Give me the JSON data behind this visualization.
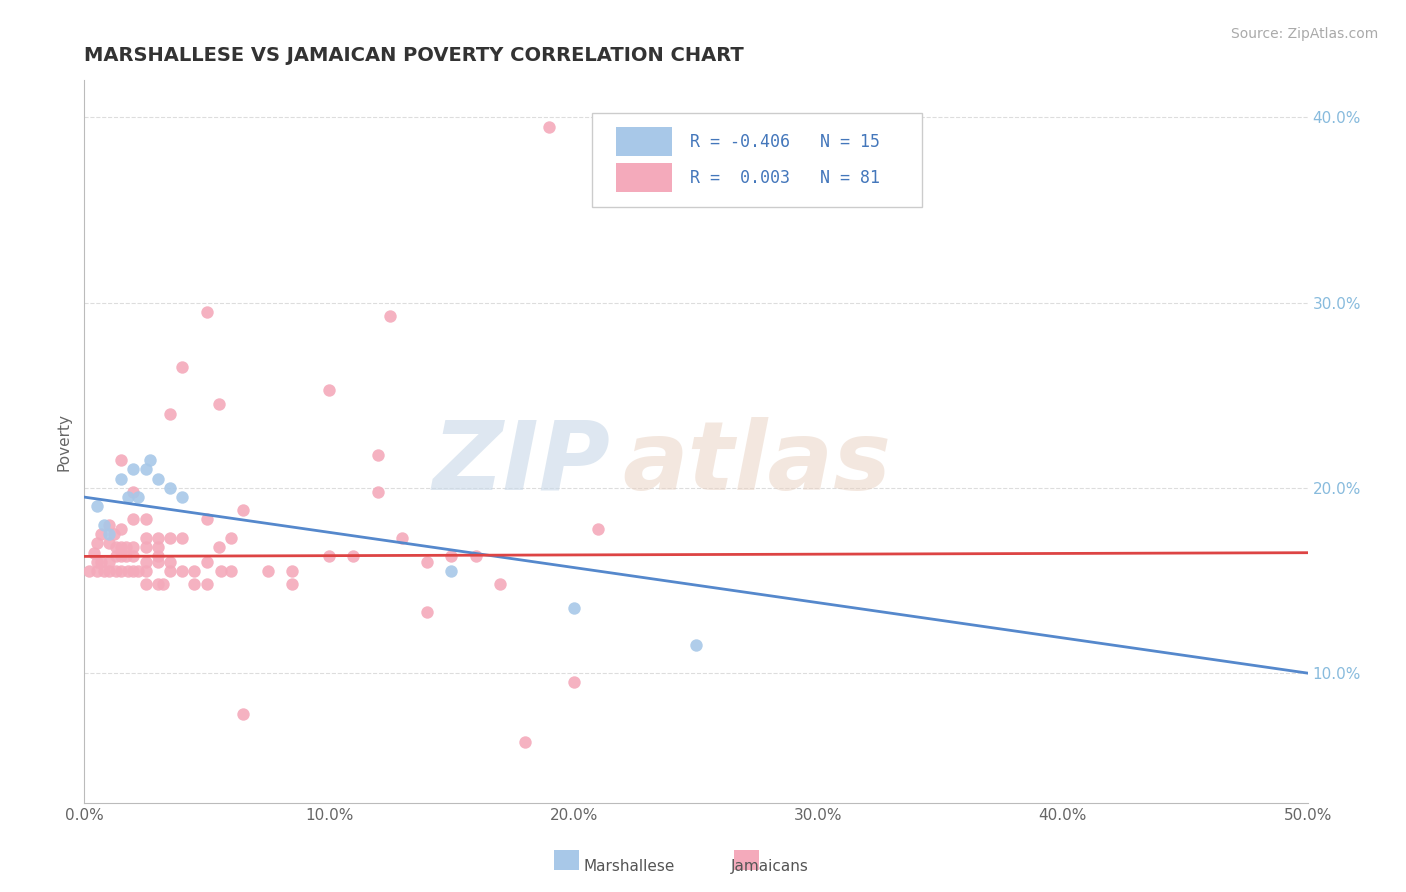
{
  "title": "MARSHALLESE VS JAMAICAN POVERTY CORRELATION CHART",
  "source": "Source: ZipAtlas.com",
  "ylabel": "Poverty",
  "xlim": [
    0.0,
    0.5
  ],
  "ylim": [
    0.03,
    0.42
  ],
  "xticks": [
    0.0,
    0.1,
    0.2,
    0.3,
    0.4,
    0.5
  ],
  "xticklabels": [
    "0.0%",
    "10.0%",
    "20.0%",
    "30.0%",
    "40.0%",
    "50.0%"
  ],
  "yticks": [
    0.1,
    0.2,
    0.3,
    0.4
  ],
  "yticklabels_right": [
    "10.0%",
    "20.0%",
    "30.0%",
    "40.0%"
  ],
  "legend_r_marshallese": "-0.406",
  "legend_n_marshallese": "15",
  "legend_r_jamaicans": "0.003",
  "legend_n_jamaicans": "81",
  "marshallese_color": "#a8c8e8",
  "jamaicans_color": "#f4aabb",
  "marshallese_line_color": "#5588cc",
  "jamaicans_line_color": "#dd4444",
  "watermark_zip": "ZIP",
  "watermark_atlas": "atlas",
  "marshallese_scatter": [
    [
      0.005,
      0.19
    ],
    [
      0.008,
      0.18
    ],
    [
      0.01,
      0.175
    ],
    [
      0.015,
      0.205
    ],
    [
      0.018,
      0.195
    ],
    [
      0.02,
      0.21
    ],
    [
      0.022,
      0.195
    ],
    [
      0.025,
      0.21
    ],
    [
      0.027,
      0.215
    ],
    [
      0.03,
      0.205
    ],
    [
      0.035,
      0.2
    ],
    [
      0.04,
      0.195
    ],
    [
      0.15,
      0.155
    ],
    [
      0.2,
      0.135
    ],
    [
      0.25,
      0.115
    ]
  ],
  "jamaicans_scatter": [
    [
      0.002,
      0.155
    ],
    [
      0.004,
      0.165
    ],
    [
      0.005,
      0.17
    ],
    [
      0.005,
      0.16
    ],
    [
      0.005,
      0.155
    ],
    [
      0.007,
      0.175
    ],
    [
      0.007,
      0.16
    ],
    [
      0.008,
      0.155
    ],
    [
      0.01,
      0.17
    ],
    [
      0.01,
      0.18
    ],
    [
      0.01,
      0.16
    ],
    [
      0.01,
      0.155
    ],
    [
      0.012,
      0.175
    ],
    [
      0.013,
      0.168
    ],
    [
      0.013,
      0.163
    ],
    [
      0.013,
      0.155
    ],
    [
      0.015,
      0.215
    ],
    [
      0.015,
      0.178
    ],
    [
      0.015,
      0.168
    ],
    [
      0.015,
      0.163
    ],
    [
      0.015,
      0.155
    ],
    [
      0.017,
      0.168
    ],
    [
      0.017,
      0.163
    ],
    [
      0.018,
      0.155
    ],
    [
      0.02,
      0.198
    ],
    [
      0.02,
      0.183
    ],
    [
      0.02,
      0.168
    ],
    [
      0.02,
      0.163
    ],
    [
      0.02,
      0.155
    ],
    [
      0.022,
      0.155
    ],
    [
      0.025,
      0.183
    ],
    [
      0.025,
      0.173
    ],
    [
      0.025,
      0.168
    ],
    [
      0.025,
      0.16
    ],
    [
      0.025,
      0.148
    ],
    [
      0.025,
      0.155
    ],
    [
      0.03,
      0.173
    ],
    [
      0.03,
      0.168
    ],
    [
      0.03,
      0.163
    ],
    [
      0.03,
      0.16
    ],
    [
      0.03,
      0.148
    ],
    [
      0.032,
      0.148
    ],
    [
      0.035,
      0.24
    ],
    [
      0.035,
      0.173
    ],
    [
      0.035,
      0.16
    ],
    [
      0.035,
      0.155
    ],
    [
      0.04,
      0.265
    ],
    [
      0.04,
      0.173
    ],
    [
      0.04,
      0.155
    ],
    [
      0.045,
      0.155
    ],
    [
      0.045,
      0.148
    ],
    [
      0.05,
      0.295
    ],
    [
      0.05,
      0.183
    ],
    [
      0.05,
      0.16
    ],
    [
      0.05,
      0.148
    ],
    [
      0.055,
      0.245
    ],
    [
      0.055,
      0.168
    ],
    [
      0.056,
      0.155
    ],
    [
      0.06,
      0.173
    ],
    [
      0.06,
      0.155
    ],
    [
      0.065,
      0.188
    ],
    [
      0.065,
      0.078
    ],
    [
      0.075,
      0.155
    ],
    [
      0.085,
      0.155
    ],
    [
      0.085,
      0.148
    ],
    [
      0.1,
      0.253
    ],
    [
      0.1,
      0.163
    ],
    [
      0.11,
      0.163
    ],
    [
      0.12,
      0.218
    ],
    [
      0.12,
      0.198
    ],
    [
      0.125,
      0.293
    ],
    [
      0.13,
      0.173
    ],
    [
      0.14,
      0.16
    ],
    [
      0.14,
      0.133
    ],
    [
      0.15,
      0.163
    ],
    [
      0.16,
      0.163
    ],
    [
      0.17,
      0.148
    ],
    [
      0.18,
      0.063
    ],
    [
      0.19,
      0.395
    ],
    [
      0.2,
      0.095
    ],
    [
      0.21,
      0.178
    ]
  ],
  "marshallese_trendline_x": [
    0.0,
    0.5
  ],
  "marshallese_trendline_y": [
    0.195,
    0.1
  ],
  "jamaicans_trendline_x": [
    0.0,
    0.5
  ],
  "jamaicans_trendline_y": [
    0.163,
    0.165
  ]
}
